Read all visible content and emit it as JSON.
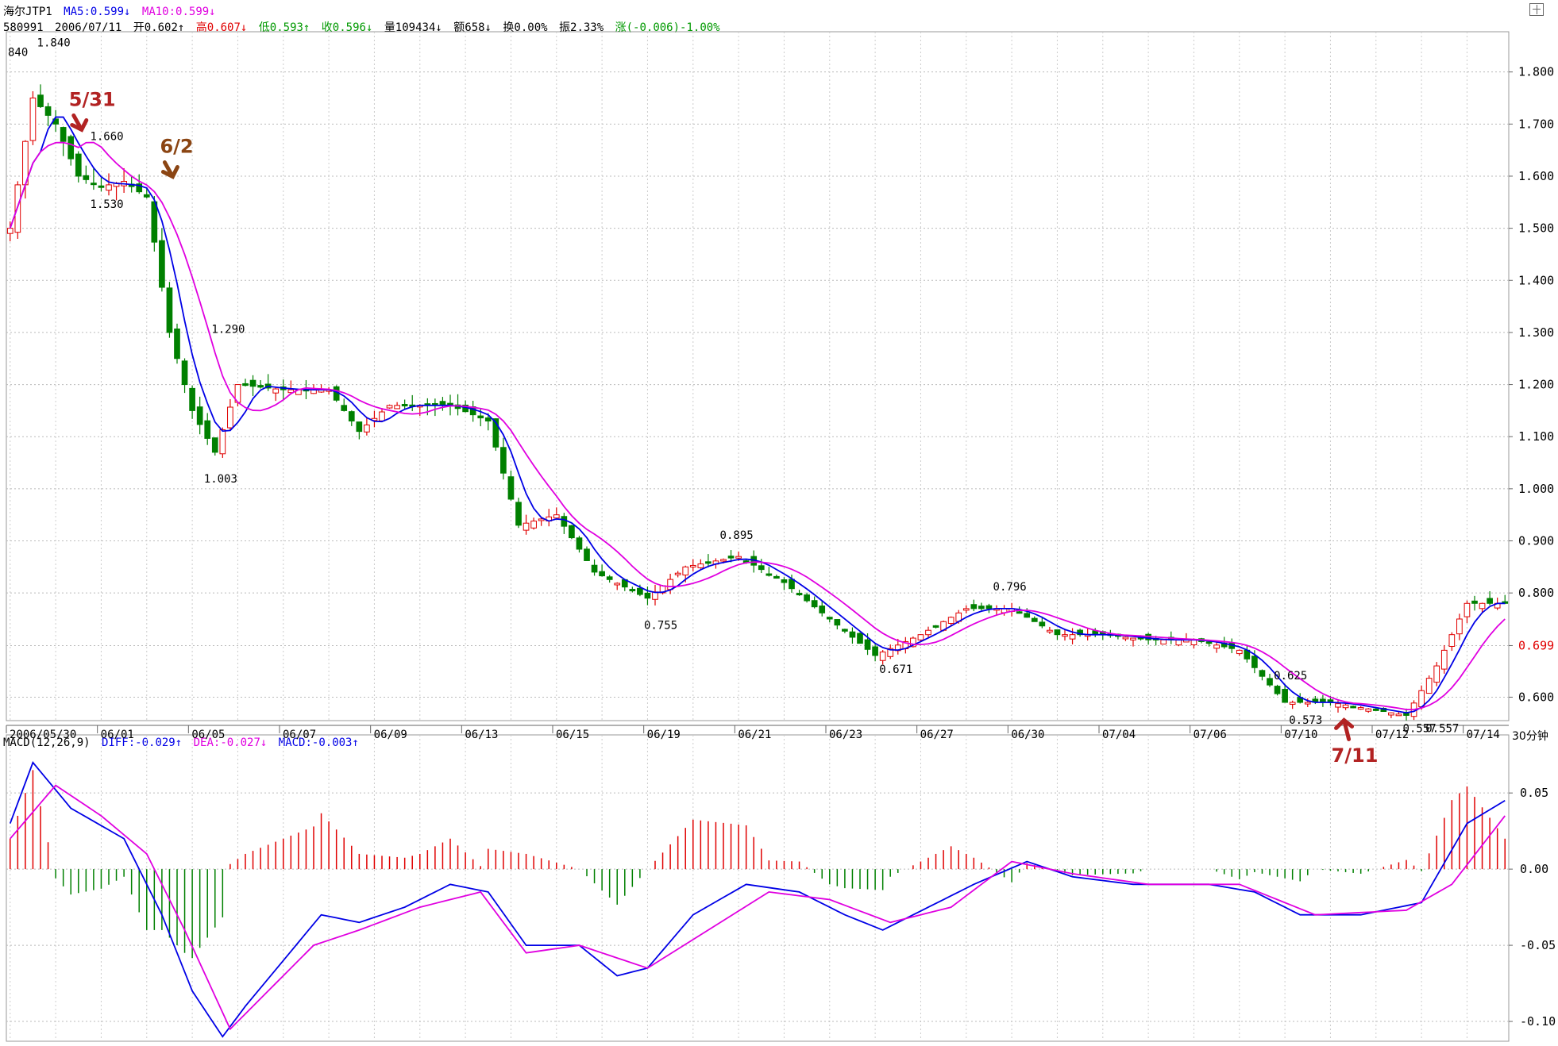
{
  "header": {
    "symbol": "海尔JTP1",
    "ma5": "MA5:0.599↓",
    "ma10": "MA10:0.599↓",
    "code": "580991",
    "date": "2006/07/11",
    "open": "开0.602↑",
    "high": "高0.607↓",
    "low": "低0.593↑",
    "close": "收0.596↓",
    "volume": "量109434↓",
    "amount": "额658↓",
    "turnover": "换0.00%",
    "amplitude": "振2.33%",
    "change": "涨(-0.006)-1.00%"
  },
  "macd_header": {
    "name": "MACD(12,26,9)",
    "diff": "DIFF:-0.029↑",
    "dea": "DEA:-0.027↓",
    "macd": "MACD:-0.003↑"
  },
  "period_label": "30分钟",
  "colors": {
    "up": "#e00000",
    "down": "#008000",
    "ma5": "#0000e6",
    "ma10": "#e000e0",
    "arrow": "#b22222",
    "arrow2": "#8b4513"
  },
  "chart_data": [
    {
      "type": "candlestick",
      "title": "",
      "ylim": [
        0.555,
        1.865
      ],
      "y_ticks": [
        "1.800",
        "1.700",
        "1.600",
        "1.500",
        "1.400",
        "1.300",
        "1.200",
        "1.100",
        "1.000",
        "0.900",
        "0.800",
        "0.699",
        "0.600"
      ],
      "y_tick_values": [
        1.8,
        1.7,
        1.6,
        1.5,
        1.4,
        1.3,
        1.2,
        1.1,
        1.0,
        0.9,
        0.8,
        0.699,
        0.6
      ],
      "highlight_tick": "0.699",
      "x_ticks": [
        "2006/05/30",
        "06/01",
        "06/05",
        "06/07",
        "06/09",
        "06/13",
        "06/15",
        "06/19",
        "06/21",
        "06/23",
        "06/27",
        "06/30",
        "07/04",
        "07/06",
        "07/10",
        "07/12",
        "07/14"
      ],
      "x_tick_index": [
        0,
        12,
        24,
        36,
        48,
        60,
        72,
        84,
        96,
        108,
        120,
        132,
        144,
        156,
        168,
        180,
        192
      ],
      "bar_count": 198,
      "anchors": [
        {
          "i": 0,
          "v": 1.5
        },
        {
          "i": 3,
          "v": 1.75
        },
        {
          "i": 6,
          "v": 1.7
        },
        {
          "i": 9,
          "v": 1.6
        },
        {
          "i": 12,
          "v": 1.58
        },
        {
          "i": 15,
          "v": 1.59
        },
        {
          "i": 18,
          "v": 1.56
        },
        {
          "i": 21,
          "v": 1.3
        },
        {
          "i": 24,
          "v": 1.15
        },
        {
          "i": 27,
          "v": 1.07
        },
        {
          "i": 30,
          "v": 1.2
        },
        {
          "i": 36,
          "v": 1.19
        },
        {
          "i": 42,
          "v": 1.19
        },
        {
          "i": 46,
          "v": 1.11
        },
        {
          "i": 50,
          "v": 1.16
        },
        {
          "i": 54,
          "v": 1.16
        },
        {
          "i": 58,
          "v": 1.16
        },
        {
          "i": 63,
          "v": 1.13
        },
        {
          "i": 67,
          "v": 0.93
        },
        {
          "i": 72,
          "v": 0.95
        },
        {
          "i": 77,
          "v": 0.84
        },
        {
          "i": 84,
          "v": 0.79
        },
        {
          "i": 89,
          "v": 0.85
        },
        {
          "i": 96,
          "v": 0.87
        },
        {
          "i": 102,
          "v": 0.82
        },
        {
          "i": 108,
          "v": 0.75
        },
        {
          "i": 114,
          "v": 0.68
        },
        {
          "i": 120,
          "v": 0.72
        },
        {
          "i": 126,
          "v": 0.77
        },
        {
          "i": 132,
          "v": 0.77
        },
        {
          "i": 138,
          "v": 0.72
        },
        {
          "i": 144,
          "v": 0.72
        },
        {
          "i": 150,
          "v": 0.71
        },
        {
          "i": 156,
          "v": 0.71
        },
        {
          "i": 162,
          "v": 0.69
        },
        {
          "i": 168,
          "v": 0.59
        },
        {
          "i": 174,
          "v": 0.59
        },
        {
          "i": 180,
          "v": 0.575
        },
        {
          "i": 184,
          "v": 0.565
        },
        {
          "i": 188,
          "v": 0.66
        },
        {
          "i": 192,
          "v": 0.78
        },
        {
          "i": 197,
          "v": 0.78
        }
      ],
      "annotations": [
        {
          "text": "1.840",
          "i": 5,
          "v": 1.84
        },
        {
          "text": "1.660",
          "i": 12,
          "v": 1.66
        },
        {
          "text": "1.530",
          "i": 12,
          "v": 1.53
        },
        {
          "text": "1.290",
          "i": 28,
          "v": 1.29
        },
        {
          "text": "1.003",
          "i": 27,
          "v": 1.003
        },
        {
          "text": "0.895",
          "i": 95,
          "v": 0.895
        },
        {
          "text": "0.755",
          "i": 85,
          "v": 0.755
        },
        {
          "text": "0.671",
          "i": 116,
          "v": 0.671
        },
        {
          "text": "0.796",
          "i": 131,
          "v": 0.796
        },
        {
          "text": "0.625",
          "i": 168,
          "v": 0.625
        },
        {
          "text": "0.573",
          "i": 170,
          "v": 0.573
        },
        {
          "text": "0.557",
          "i": 185,
          "v": 0.557
        },
        {
          "text": "0.557",
          "i": 188,
          "v": 0.557
        }
      ],
      "left_label": "840",
      "series": [
        {
          "name": "MA5"
        },
        {
          "name": "MA10"
        }
      ]
    },
    {
      "type": "macd",
      "title": "",
      "ylim": [
        -0.113,
        0.085
      ],
      "y_ticks": [
        "0.05",
        "0.00",
        "-0.05",
        "-0.10"
      ],
      "y_tick_values": [
        0.05,
        0,
        -0.05,
        -0.1
      ],
      "diff_anchors": [
        {
          "i": 0,
          "v": 0.03
        },
        {
          "i": 3,
          "v": 0.07
        },
        {
          "i": 8,
          "v": 0.04
        },
        {
          "i": 15,
          "v": 0.02
        },
        {
          "i": 20,
          "v": -0.03
        },
        {
          "i": 24,
          "v": -0.08
        },
        {
          "i": 28,
          "v": -0.11
        },
        {
          "i": 31,
          "v": -0.09
        },
        {
          "i": 36,
          "v": -0.06
        },
        {
          "i": 41,
          "v": -0.03
        },
        {
          "i": 46,
          "v": -0.035
        },
        {
          "i": 52,
          "v": -0.025
        },
        {
          "i": 58,
          "v": -0.01
        },
        {
          "i": 63,
          "v": -0.015
        },
        {
          "i": 68,
          "v": -0.05
        },
        {
          "i": 75,
          "v": -0.05
        },
        {
          "i": 80,
          "v": -0.07
        },
        {
          "i": 84,
          "v": -0.065
        },
        {
          "i": 90,
          "v": -0.03
        },
        {
          "i": 97,
          "v": -0.01
        },
        {
          "i": 104,
          "v": -0.015
        },
        {
          "i": 110,
          "v": -0.03
        },
        {
          "i": 115,
          "v": -0.04
        },
        {
          "i": 121,
          "v": -0.025
        },
        {
          "i": 127,
          "v": -0.01
        },
        {
          "i": 134,
          "v": 0.005
        },
        {
          "i": 140,
          "v": -0.005
        },
        {
          "i": 148,
          "v": -0.01
        },
        {
          "i": 158,
          "v": -0.01
        },
        {
          "i": 164,
          "v": -0.015
        },
        {
          "i": 170,
          "v": -0.03
        },
        {
          "i": 178,
          "v": -0.03
        },
        {
          "i": 186,
          "v": -0.022
        },
        {
          "i": 192,
          "v": 0.03
        },
        {
          "i": 197,
          "v": 0.045
        }
      ],
      "dea_anchors": [
        {
          "i": 0,
          "v": 0.02
        },
        {
          "i": 6,
          "v": 0.055
        },
        {
          "i": 12,
          "v": 0.035
        },
        {
          "i": 18,
          "v": 0.01
        },
        {
          "i": 23,
          "v": -0.04
        },
        {
          "i": 29,
          "v": -0.105
        },
        {
          "i": 34,
          "v": -0.08
        },
        {
          "i": 40,
          "v": -0.05
        },
        {
          "i": 46,
          "v": -0.04
        },
        {
          "i": 54,
          "v": -0.025
        },
        {
          "i": 62,
          "v": -0.015
        },
        {
          "i": 68,
          "v": -0.055
        },
        {
          "i": 75,
          "v": -0.05
        },
        {
          "i": 84,
          "v": -0.065
        },
        {
          "i": 92,
          "v": -0.04
        },
        {
          "i": 100,
          "v": -0.015
        },
        {
          "i": 108,
          "v": -0.02
        },
        {
          "i": 116,
          "v": -0.035
        },
        {
          "i": 124,
          "v": -0.025
        },
        {
          "i": 132,
          "v": 0.005
        },
        {
          "i": 140,
          "v": -0.003
        },
        {
          "i": 150,
          "v": -0.01
        },
        {
          "i": 162,
          "v": -0.01
        },
        {
          "i": 172,
          "v": -0.03
        },
        {
          "i": 184,
          "v": -0.027
        },
        {
          "i": 190,
          "v": -0.01
        },
        {
          "i": 197,
          "v": 0.035
        }
      ]
    }
  ],
  "callouts": [
    {
      "text": "5/31",
      "i": 9
    },
    {
      "text": "6/2",
      "i": 21
    },
    {
      "text": "7/11",
      "i": 176
    }
  ]
}
